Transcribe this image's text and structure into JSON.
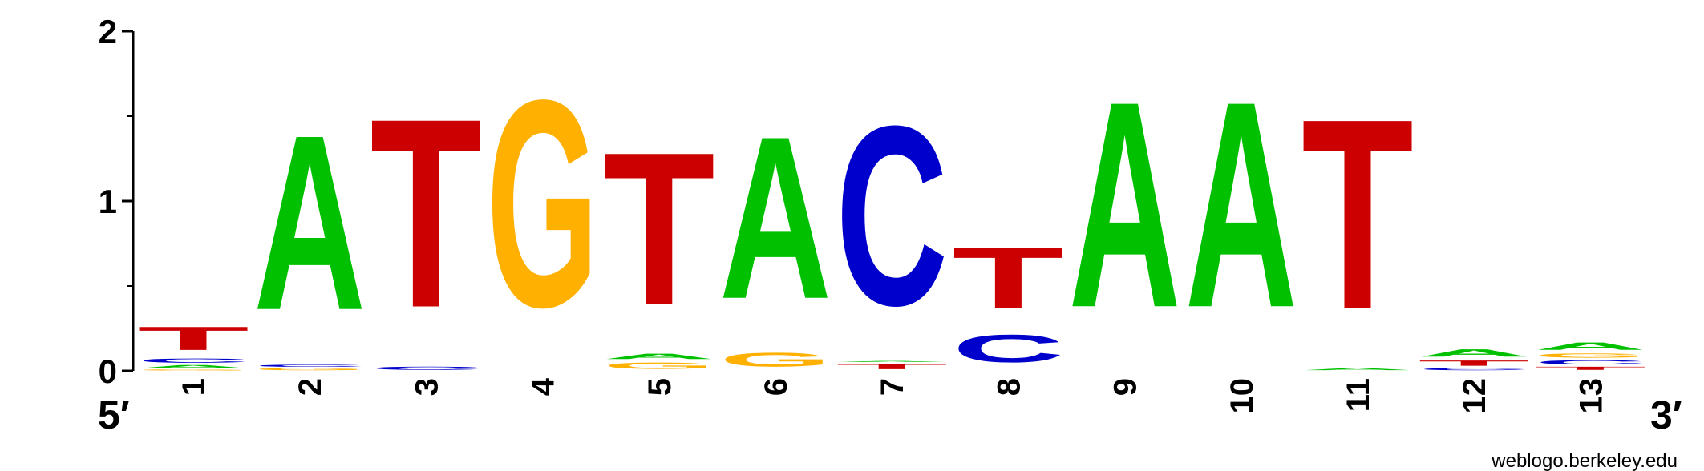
{
  "chart_data": {
    "type": "sequence_logo",
    "xlabel": "",
    "ylabel": "",
    "ylim": [
      0,
      2
    ],
    "yticks": [
      "0",
      "1",
      "2"
    ],
    "end_labels": {
      "left": "5′",
      "right": "3′"
    },
    "colors": {
      "A": "#00c000",
      "C": "#0000cc",
      "G": "#ffb000",
      "T": "#cc0000"
    },
    "positions": [
      {
        "label": "1",
        "stack": [
          [
            "G",
            0.01
          ],
          [
            "A",
            0.03
          ],
          [
            "C",
            0.04
          ],
          [
            "T",
            0.22
          ]
        ]
      },
      {
        "label": "2",
        "stack": [
          [
            "G",
            0.02
          ],
          [
            "C",
            0.02
          ],
          [
            "A",
            1.65
          ]
        ]
      },
      {
        "label": "3",
        "stack": [
          [
            "C",
            0.03
          ],
          [
            "T",
            1.78
          ]
        ]
      },
      {
        "label": "4",
        "stack": [
          [
            "G",
            1.95
          ]
        ]
      },
      {
        "label": "5",
        "stack": [
          [
            "G",
            0.06
          ],
          [
            "A",
            0.05
          ],
          [
            "T",
            1.44
          ]
        ]
      },
      {
        "label": "6",
        "stack": [
          [
            "G",
            0.13
          ],
          [
            "A",
            1.53
          ]
        ]
      },
      {
        "label": "7",
        "stack": [
          [
            "T",
            0.05
          ],
          [
            "A",
            0.01
          ],
          [
            "C",
            1.69
          ]
        ]
      },
      {
        "label": "8",
        "stack": [
          [
            "C",
            0.26
          ],
          [
            "T",
            0.57
          ]
        ]
      },
      {
        "label": "9",
        "stack": [
          [
            "A",
            1.94
          ]
        ]
      },
      {
        "label": "10",
        "stack": [
          [
            "A",
            1.94
          ]
        ]
      },
      {
        "label": "11",
        "stack": [
          [
            "A",
            0.02
          ],
          [
            "T",
            1.79
          ]
        ]
      },
      {
        "label": "12",
        "stack": [
          [
            "C",
            0.02
          ],
          [
            "T",
            0.05
          ],
          [
            "A",
            0.07
          ]
        ]
      },
      {
        "label": "13",
        "stack": [
          [
            "T",
            0.03
          ],
          [
            "C",
            0.04
          ],
          [
            "G",
            0.04
          ],
          [
            "A",
            0.07
          ]
        ]
      }
    ]
  },
  "credit": "weblogo.berkeley.edu"
}
